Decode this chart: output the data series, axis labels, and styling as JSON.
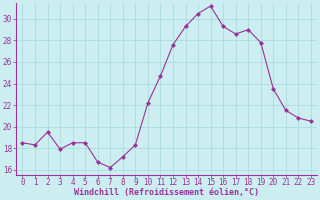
{
  "x": [
    0,
    1,
    2,
    3,
    4,
    5,
    6,
    7,
    8,
    9,
    10,
    11,
    12,
    13,
    14,
    15,
    16,
    17,
    18,
    19,
    20,
    21,
    22,
    23
  ],
  "y": [
    18.5,
    18.3,
    19.5,
    17.9,
    18.5,
    18.5,
    16.7,
    16.2,
    17.2,
    18.3,
    22.2,
    24.7,
    27.6,
    29.3,
    30.5,
    31.2,
    29.3,
    28.6,
    29.0,
    27.8,
    23.5,
    21.5,
    20.8,
    20.5
  ],
  "line_color": "#993399",
  "marker": "D",
  "marker_size": 2.0,
  "background_color": "#cceef0",
  "grid_color": "#aadddd",
  "xlabel": "Windchill (Refroidissement éolien,°C)",
  "xlabel_color": "#993399",
  "tick_color": "#993399",
  "label_color": "#993399",
  "ylim": [
    15.5,
    31.5
  ],
  "xlim": [
    -0.5,
    23.5
  ],
  "yticks": [
    16,
    18,
    20,
    22,
    24,
    26,
    28,
    30
  ],
  "xticks": [
    0,
    1,
    2,
    3,
    4,
    5,
    6,
    7,
    8,
    9,
    10,
    11,
    12,
    13,
    14,
    15,
    16,
    17,
    18,
    19,
    20,
    21,
    22,
    23
  ],
  "tick_fontsize": 5.5,
  "xlabel_fontsize": 6.0
}
